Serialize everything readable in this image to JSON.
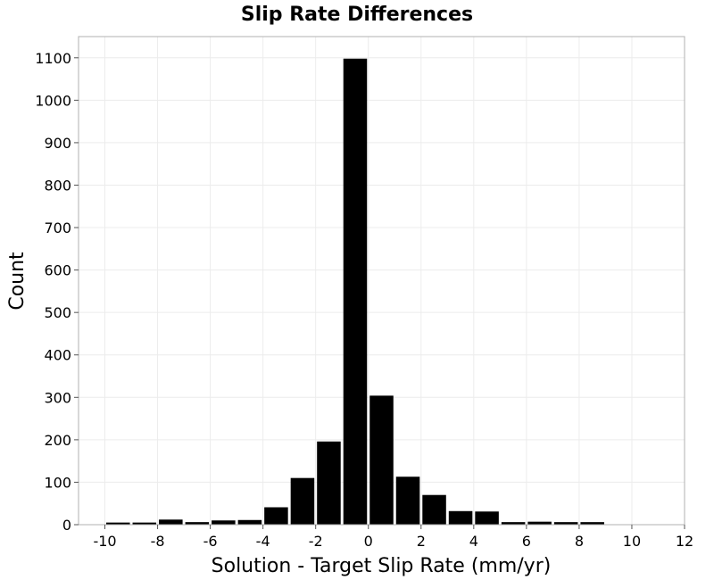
{
  "chart_data": {
    "type": "bar",
    "title": "Slip Rate Differences",
    "xlabel": "Solution - Target Slip Rate (mm/yr)",
    "ylabel": "Count",
    "xlim": [
      -11,
      12
    ],
    "ylim": [
      0,
      1150
    ],
    "xticks": [
      -10,
      -8,
      -6,
      -4,
      -2,
      0,
      2,
      4,
      6,
      8,
      10,
      12
    ],
    "yticks": [
      0,
      100,
      200,
      300,
      400,
      500,
      600,
      700,
      800,
      900,
      1000,
      1100
    ],
    "bin_width": 1,
    "grid": true,
    "bins": [
      {
        "x": -10,
        "value": 5
      },
      {
        "x": -9,
        "value": 5
      },
      {
        "x": -8,
        "value": 12
      },
      {
        "x": -7,
        "value": 6
      },
      {
        "x": -6,
        "value": 10
      },
      {
        "x": -5,
        "value": 11
      },
      {
        "x": -4,
        "value": 41
      },
      {
        "x": -3,
        "value": 110
      },
      {
        "x": -2,
        "value": 196
      },
      {
        "x": -1,
        "value": 1098
      },
      {
        "x": 0,
        "value": 304
      },
      {
        "x": 1,
        "value": 113
      },
      {
        "x": 2,
        "value": 70
      },
      {
        "x": 3,
        "value": 32
      },
      {
        "x": 4,
        "value": 31
      },
      {
        "x": 5,
        "value": 6
      },
      {
        "x": 6,
        "value": 7
      },
      {
        "x": 7,
        "value": 6
      },
      {
        "x": 8,
        "value": 6
      }
    ],
    "colors": {
      "bar": "#000000",
      "grid": "#ececec",
      "frame": "#b0b0b0"
    }
  }
}
